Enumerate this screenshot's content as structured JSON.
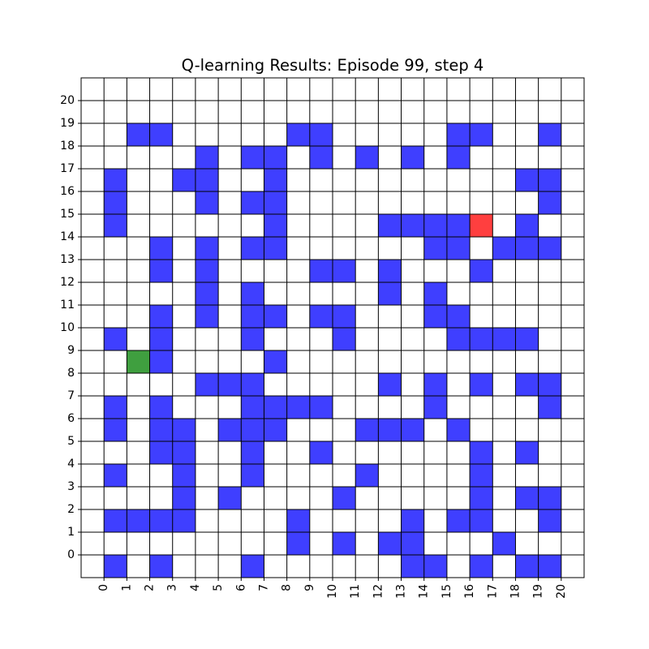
{
  "title": "Q-learning Results: Episode 99, step 4",
  "grid": {
    "columns": 22,
    "rows": 22,
    "x_ticks": [
      "0",
      "1",
      "2",
      "3",
      "4",
      "5",
      "6",
      "7",
      "8",
      "9",
      "10",
      "11",
      "12",
      "13",
      "14",
      "15",
      "16",
      "17",
      "18",
      "19",
      "20"
    ],
    "y_ticks": [
      "0",
      "1",
      "2",
      "3",
      "4",
      "5",
      "6",
      "7",
      "8",
      "9",
      "10",
      "11",
      "12",
      "13",
      "14",
      "15",
      "16",
      "17",
      "18",
      "19",
      "20"
    ],
    "colors": {
      "background": "#ffffff",
      "wall": "#3f3fff",
      "agent": "#ff3f3f",
      "goal": "#3f9f3f",
      "grid_line": "#000000"
    },
    "walls": [
      [
        2,
        2
      ],
      [
        3,
        2
      ],
      [
        9,
        2
      ],
      [
        10,
        2
      ],
      [
        16,
        2
      ],
      [
        17,
        2
      ],
      [
        20,
        2
      ],
      [
        5,
        3
      ],
      [
        7,
        3
      ],
      [
        8,
        3
      ],
      [
        10,
        3
      ],
      [
        12,
        3
      ],
      [
        14,
        3
      ],
      [
        16,
        3
      ],
      [
        1,
        4
      ],
      [
        4,
        4
      ],
      [
        5,
        4
      ],
      [
        8,
        4
      ],
      [
        19,
        4
      ],
      [
        20,
        4
      ],
      [
        1,
        5
      ],
      [
        5,
        5
      ],
      [
        7,
        5
      ],
      [
        8,
        5
      ],
      [
        20,
        5
      ],
      [
        1,
        6
      ],
      [
        8,
        6
      ],
      [
        13,
        6
      ],
      [
        14,
        6
      ],
      [
        15,
        6
      ],
      [
        16,
        6
      ],
      [
        19,
        6
      ],
      [
        3,
        7
      ],
      [
        5,
        7
      ],
      [
        7,
        7
      ],
      [
        8,
        7
      ],
      [
        15,
        7
      ],
      [
        16,
        7
      ],
      [
        18,
        7
      ],
      [
        19,
        7
      ],
      [
        20,
        7
      ],
      [
        3,
        8
      ],
      [
        5,
        8
      ],
      [
        10,
        8
      ],
      [
        11,
        8
      ],
      [
        13,
        8
      ],
      [
        17,
        8
      ],
      [
        5,
        9
      ],
      [
        7,
        9
      ],
      [
        13,
        9
      ],
      [
        15,
        9
      ],
      [
        3,
        10
      ],
      [
        5,
        10
      ],
      [
        7,
        10
      ],
      [
        8,
        10
      ],
      [
        10,
        10
      ],
      [
        11,
        10
      ],
      [
        15,
        10
      ],
      [
        16,
        10
      ],
      [
        1,
        11
      ],
      [
        3,
        11
      ],
      [
        7,
        11
      ],
      [
        11,
        11
      ],
      [
        16,
        11
      ],
      [
        17,
        11
      ],
      [
        18,
        11
      ],
      [
        19,
        11
      ],
      [
        3,
        12
      ],
      [
        8,
        12
      ],
      [
        5,
        13
      ],
      [
        6,
        13
      ],
      [
        7,
        13
      ],
      [
        13,
        13
      ],
      [
        15,
        13
      ],
      [
        17,
        13
      ],
      [
        19,
        13
      ],
      [
        20,
        13
      ],
      [
        1,
        14
      ],
      [
        3,
        14
      ],
      [
        7,
        14
      ],
      [
        8,
        14
      ],
      [
        9,
        14
      ],
      [
        10,
        14
      ],
      [
        15,
        14
      ],
      [
        20,
        14
      ],
      [
        1,
        15
      ],
      [
        3,
        15
      ],
      [
        4,
        15
      ],
      [
        6,
        15
      ],
      [
        7,
        15
      ],
      [
        8,
        15
      ],
      [
        12,
        15
      ],
      [
        13,
        15
      ],
      [
        14,
        15
      ],
      [
        16,
        15
      ],
      [
        3,
        16
      ],
      [
        4,
        16
      ],
      [
        7,
        16
      ],
      [
        10,
        16
      ],
      [
        17,
        16
      ],
      [
        19,
        16
      ],
      [
        1,
        17
      ],
      [
        4,
        17
      ],
      [
        7,
        17
      ],
      [
        12,
        17
      ],
      [
        17,
        17
      ],
      [
        4,
        18
      ],
      [
        6,
        18
      ],
      [
        11,
        18
      ],
      [
        17,
        18
      ],
      [
        19,
        18
      ],
      [
        20,
        18
      ],
      [
        1,
        19
      ],
      [
        2,
        19
      ],
      [
        3,
        19
      ],
      [
        4,
        19
      ],
      [
        9,
        19
      ],
      [
        14,
        19
      ],
      [
        16,
        19
      ],
      [
        17,
        19
      ],
      [
        20,
        19
      ],
      [
        9,
        20
      ],
      [
        11,
        20
      ],
      [
        13,
        20
      ],
      [
        14,
        20
      ],
      [
        18,
        20
      ],
      [
        1,
        21
      ],
      [
        3,
        21
      ],
      [
        7,
        21
      ],
      [
        14,
        21
      ],
      [
        15,
        21
      ],
      [
        17,
        21
      ],
      [
        19,
        21
      ],
      [
        20,
        21
      ]
    ],
    "agent": [
      17,
      6
    ],
    "goal": [
      2,
      12
    ]
  }
}
